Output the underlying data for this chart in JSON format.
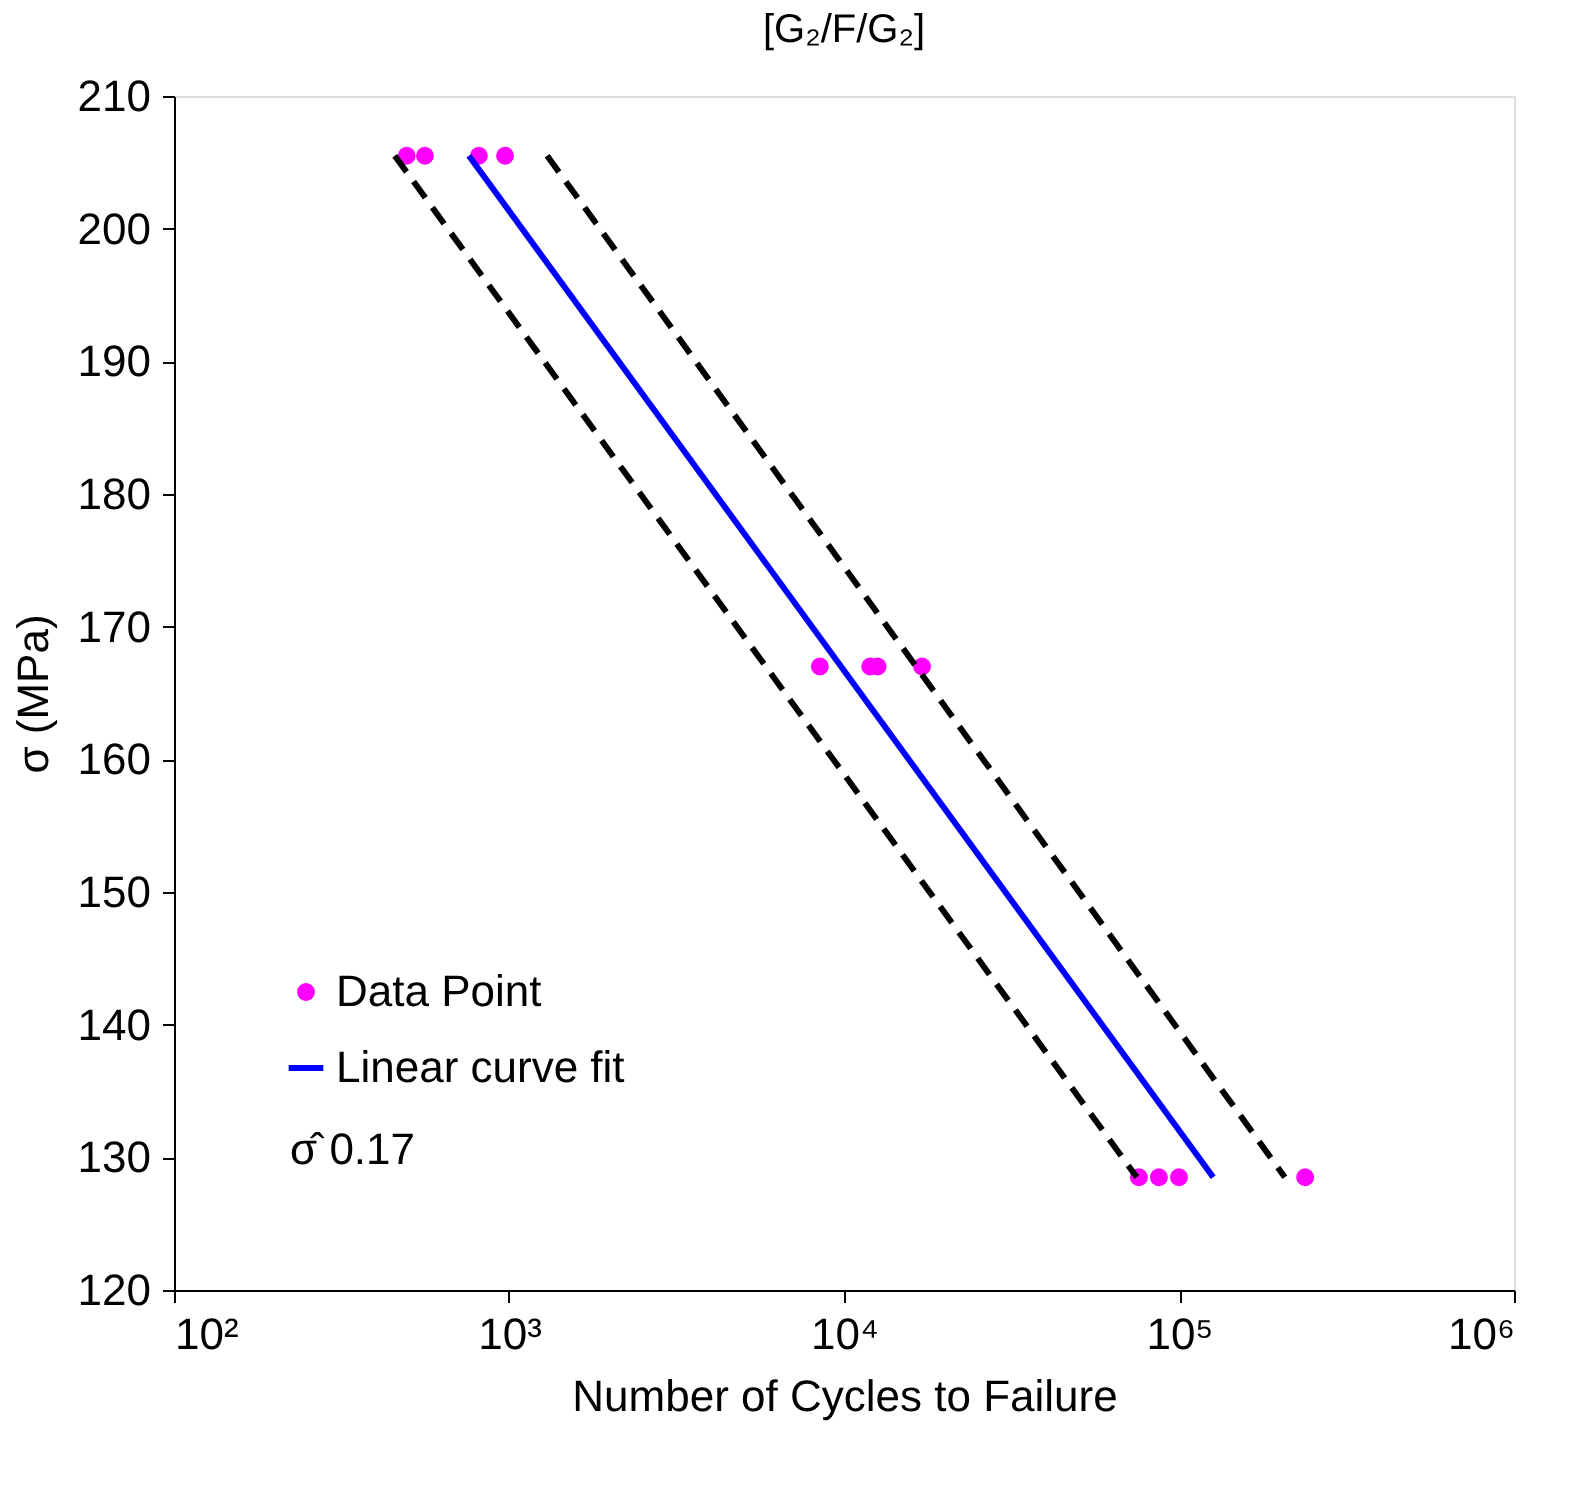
{
  "chart_data": {
    "type": "scatter",
    "title": "[G₂/F/G₂]",
    "xlabel": "Number of Cycles to Failure",
    "ylabel": "σ (MPa)",
    "log": "x",
    "xlim": [
      100,
      1000000
    ],
    "ylim": [
      120,
      210
    ],
    "xticks": [
      {
        "value": 100,
        "label": "10²"
      },
      {
        "value": 1000,
        "label": "10³"
      },
      {
        "value": 10000,
        "label": "10⁴"
      },
      {
        "value": 100000,
        "label": "10⁵"
      },
      {
        "value": 1000000,
        "label": "10⁶"
      }
    ],
    "yticks": [
      120,
      130,
      140,
      150,
      160,
      170,
      180,
      190,
      200,
      210
    ],
    "grid": false,
    "legend": "bottom left",
    "series": [
      {
        "name": "Data Point",
        "color": "#ff00ff",
        "marker": "circle",
        "x": [
          495,
          561,
          813,
          973,
          8470,
          11970,
          12600,
          17100,
          75900,
          87100,
          100000,
          238000
        ],
        "values": [
          205.5,
          205.5,
          205.5,
          205.5,
          167,
          167,
          167,
          167,
          128.5,
          128.5,
          128.5,
          128.5
        ]
      },
      {
        "name": "Linear curve fit",
        "type": "line",
        "color": "#0000ff",
        "line_style": "solid",
        "x": [
          759,
          126500
        ],
        "values": [
          205.5,
          128.5
        ]
      },
      {
        "type": "line",
        "color": "#000000",
        "line_style": "dashed",
        "x": [
          456,
          74800
        ],
        "values": [
          205.5,
          128.5
        ]
      },
      {
        "type": "line",
        "color": "#000000",
        "line_style": "dashed",
        "x": [
          1300,
          207000
        ],
        "values": [
          205.5,
          128.5
        ]
      }
    ],
    "annotations": [
      "σ̂   0.17"
    ]
  }
}
